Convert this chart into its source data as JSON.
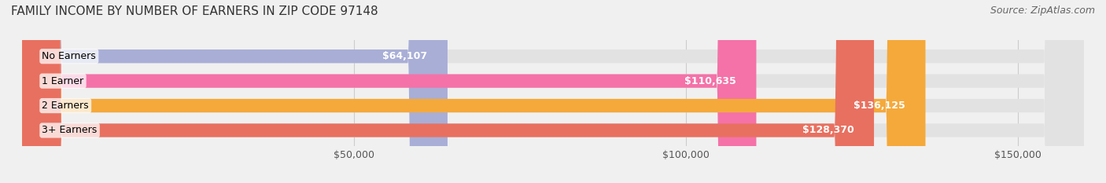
{
  "title": "FAMILY INCOME BY NUMBER OF EARNERS IN ZIP CODE 97148",
  "source": "Source: ZipAtlas.com",
  "categories": [
    "No Earners",
    "1 Earner",
    "2 Earners",
    "3+ Earners"
  ],
  "values": [
    64107,
    110635,
    136125,
    128370
  ],
  "bar_colors": [
    "#a8aed6",
    "#f472a8",
    "#f5a93a",
    "#e87060"
  ],
  "bar_labels": [
    "$64,107",
    "$110,635",
    "$136,125",
    "$128,370"
  ],
  "background_color": "#f0f0f0",
  "bar_background_color": "#e2e2e2",
  "xmin": 0,
  "xmax": 160000,
  "xticks": [
    50000,
    100000,
    150000
  ],
  "xtick_labels": [
    "$50,000",
    "$100,000",
    "$150,000"
  ],
  "title_fontsize": 11,
  "source_fontsize": 9,
  "label_fontsize": 9,
  "bar_height": 0.55,
  "bar_label_fontsize": 9
}
